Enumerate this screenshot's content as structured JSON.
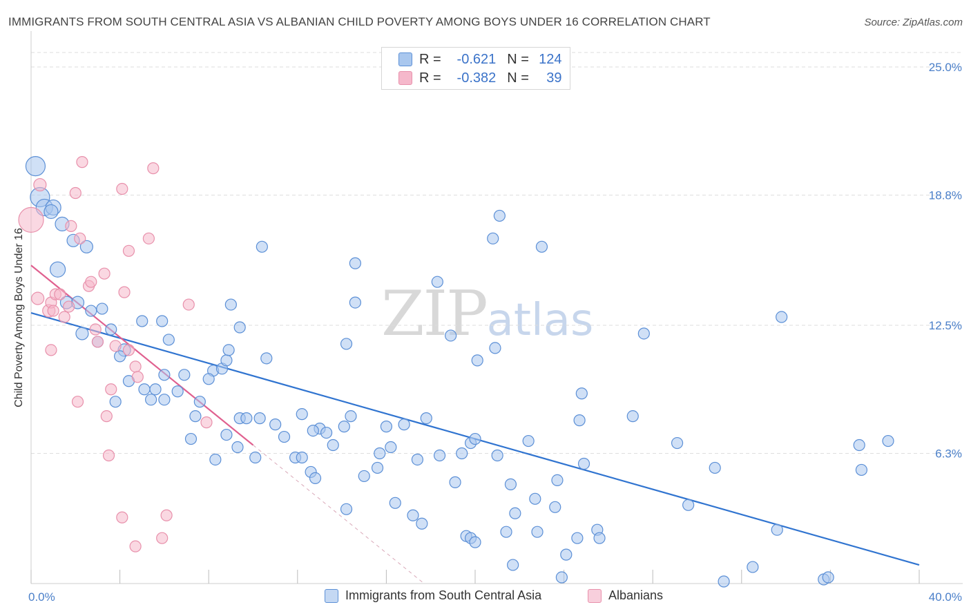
{
  "header": {
    "title": "IMMIGRANTS FROM SOUTH CENTRAL ASIA VS ALBANIAN CHILD POVERTY AMONG BOYS UNDER 16 CORRELATION CHART",
    "source": "Source: ZipAtlas.com"
  },
  "watermark": {
    "zip": "ZIP",
    "atlas": "atlas"
  },
  "legend": {
    "rows": [
      {
        "r_label": "R =",
        "r_value": "-0.621",
        "n_label": "N =",
        "n_value": "124"
      },
      {
        "r_label": "R =",
        "r_value": "-0.382",
        "n_label": "N =",
        "n_value": "39"
      }
    ]
  },
  "bottom_legend": {
    "blue": "Immigrants from South Central Asia",
    "pink": "Albanians"
  },
  "colors": {
    "blue_fill": "#a9c7ee",
    "blue_stroke": "#5b8fd6",
    "blue_line": "#3074d0",
    "pink_fill": "#f5b8cb",
    "pink_stroke": "#e890ab",
    "pink_line": "#e0608f",
    "tick_text": "#4a7fc9",
    "grid": "#dddddd"
  },
  "chart_data": {
    "type": "scatter",
    "title": "IMMIGRANTS FROM SOUTH CENTRAL ASIA VS ALBANIAN CHILD POVERTY AMONG BOYS UNDER 16 CORRELATION CHART",
    "xlabel": "",
    "ylabel": "Child Poverty Among Boys Under 16",
    "xlim": [
      0,
      40
    ],
    "ylim": [
      0,
      25
    ],
    "x_tick_labels": [
      "0.0%",
      "40.0%"
    ],
    "y_ticks": [
      {
        "value": 6.3,
        "label": "6.3%"
      },
      {
        "value": 12.5,
        "label": "12.5%"
      },
      {
        "value": 18.8,
        "label": "18.8%"
      },
      {
        "value": 25.0,
        "label": "25.0%"
      }
    ],
    "grid": true,
    "legend_position": "top-center",
    "series": [
      {
        "name": "Immigrants from South Central Asia",
        "color": "#a9c7ee",
        "R": -0.621,
        "N": 124,
        "trend": {
          "x": [
            0,
            40
          ],
          "y": [
            13.1,
            0.9
          ]
        },
        "points": [
          [
            0.2,
            20.2,
            14
          ],
          [
            0.4,
            18.7,
            14
          ],
          [
            0.6,
            18.2,
            12
          ],
          [
            1.0,
            18.2,
            11
          ],
          [
            0.9,
            18.0,
            10
          ],
          [
            1.4,
            17.4,
            10
          ],
          [
            1.9,
            16.6,
            9
          ],
          [
            2.5,
            16.3,
            9
          ],
          [
            1.2,
            15.2,
            11
          ],
          [
            1.6,
            13.6,
            9
          ],
          [
            2.1,
            13.6,
            9
          ],
          [
            2.7,
            13.2,
            8
          ],
          [
            3.2,
            13.3,
            8
          ],
          [
            2.3,
            12.1,
            9
          ],
          [
            3.6,
            12.3,
            8
          ],
          [
            3.0,
            11.7,
            8
          ],
          [
            4.2,
            11.3,
            9
          ],
          [
            4.0,
            11.0,
            8
          ],
          [
            5.0,
            12.7,
            8
          ],
          [
            5.9,
            12.7,
            8
          ],
          [
            6.2,
            11.8,
            8
          ],
          [
            4.4,
            9.8,
            8
          ],
          [
            5.1,
            9.4,
            8
          ],
          [
            5.6,
            9.4,
            8
          ],
          [
            3.8,
            8.8,
            8
          ],
          [
            5.4,
            8.9,
            8
          ],
          [
            6.0,
            8.9,
            8
          ],
          [
            6.6,
            9.3,
            8
          ],
          [
            6.0,
            10.1,
            8
          ],
          [
            6.9,
            10.1,
            8
          ],
          [
            7.6,
            8.8,
            8
          ],
          [
            7.4,
            8.1,
            8
          ],
          [
            8.2,
            10.3,
            8
          ],
          [
            8.0,
            9.9,
            8
          ],
          [
            8.6,
            10.4,
            8
          ],
          [
            8.8,
            10.8,
            8
          ],
          [
            8.9,
            11.3,
            8
          ],
          [
            9.4,
            12.4,
            8
          ],
          [
            9.0,
            13.5,
            8
          ],
          [
            10.6,
            10.9,
            8
          ],
          [
            10.4,
            16.3,
            8
          ],
          [
            7.2,
            7.0,
            8
          ],
          [
            8.3,
            6.0,
            8
          ],
          [
            8.8,
            7.2,
            8
          ],
          [
            9.3,
            6.6,
            8
          ],
          [
            9.4,
            8.0,
            8
          ],
          [
            9.7,
            8.0,
            8
          ],
          [
            10.1,
            6.1,
            8
          ],
          [
            10.3,
            8.0,
            8
          ],
          [
            11.0,
            7.7,
            8
          ],
          [
            11.4,
            7.1,
            8
          ],
          [
            11.9,
            6.1,
            8
          ],
          [
            12.2,
            6.1,
            8
          ],
          [
            12.2,
            8.2,
            8
          ],
          [
            12.6,
            5.4,
            8
          ],
          [
            12.8,
            5.1,
            8
          ],
          [
            13.0,
            7.5,
            8
          ],
          [
            13.3,
            7.3,
            8
          ],
          [
            13.6,
            6.7,
            8
          ],
          [
            14.1,
            7.6,
            8
          ],
          [
            14.4,
            8.1,
            8
          ],
          [
            14.2,
            11.6,
            8
          ],
          [
            14.6,
            13.6,
            8
          ],
          [
            14.6,
            15.5,
            8
          ],
          [
            14.2,
            3.6,
            8
          ],
          [
            15.0,
            5.2,
            8
          ],
          [
            15.6,
            5.6,
            8
          ],
          [
            15.7,
            6.3,
            8
          ],
          [
            16.0,
            7.6,
            8
          ],
          [
            16.2,
            6.6,
            8
          ],
          [
            16.4,
            3.9,
            8
          ],
          [
            16.8,
            7.7,
            8
          ],
          [
            17.4,
            6.0,
            8
          ],
          [
            17.2,
            3.3,
            8
          ],
          [
            17.6,
            2.9,
            8
          ],
          [
            17.8,
            8.0,
            8
          ],
          [
            18.4,
            6.2,
            8
          ],
          [
            18.3,
            14.6,
            8
          ],
          [
            19.1,
            4.9,
            8
          ],
          [
            19.4,
            6.3,
            8
          ],
          [
            19.8,
            6.8,
            8
          ],
          [
            19.6,
            2.3,
            8
          ],
          [
            19.8,
            2.2,
            8
          ],
          [
            20.0,
            2.0,
            8
          ],
          [
            20.1,
            10.8,
            8
          ],
          [
            20.0,
            7.0,
            8
          ],
          [
            20.9,
            11.4,
            8
          ],
          [
            21.0,
            6.2,
            8
          ],
          [
            21.4,
            2.5,
            8
          ],
          [
            21.6,
            4.8,
            8
          ],
          [
            21.7,
            0.9,
            8
          ],
          [
            21.8,
            3.4,
            8
          ],
          [
            20.8,
            16.7,
            8
          ],
          [
            21.1,
            17.8,
            8
          ],
          [
            22.4,
            6.9,
            8
          ],
          [
            23.0,
            16.3,
            8
          ],
          [
            22.8,
            2.5,
            8
          ],
          [
            22.7,
            4.1,
            8
          ],
          [
            23.6,
            3.7,
            8
          ],
          [
            23.7,
            5.0,
            8
          ],
          [
            23.9,
            0.3,
            8
          ],
          [
            24.1,
            1.4,
            8
          ],
          [
            24.6,
            2.2,
            8
          ],
          [
            24.8,
            9.2,
            8
          ],
          [
            24.9,
            5.8,
            8
          ],
          [
            25.5,
            2.6,
            8
          ],
          [
            25.6,
            2.2,
            8
          ],
          [
            27.1,
            8.1,
            8
          ],
          [
            27.6,
            12.1,
            8
          ],
          [
            29.1,
            6.8,
            8
          ],
          [
            29.6,
            3.8,
            8
          ],
          [
            30.8,
            5.6,
            8
          ],
          [
            31.2,
            0.1,
            8
          ],
          [
            32.5,
            0.8,
            8
          ],
          [
            33.6,
            2.6,
            8
          ],
          [
            33.8,
            12.9,
            8
          ],
          [
            35.7,
            0.2,
            8
          ],
          [
            35.9,
            0.3,
            8
          ],
          [
            37.3,
            6.7,
            8
          ],
          [
            37.4,
            5.5,
            8
          ],
          [
            38.6,
            6.9,
            8
          ],
          [
            24.7,
            7.9,
            8
          ],
          [
            18.9,
            12.0,
            8
          ],
          [
            12.7,
            7.4,
            8
          ]
        ]
      },
      {
        "name": "Albanians",
        "color": "#f5b8cb",
        "R": -0.382,
        "N": 39,
        "trend": {
          "x": [
            0,
            10.0
          ],
          "y": [
            15.4,
            6.7
          ]
        },
        "points": [
          [
            0.0,
            17.6,
            18
          ],
          [
            0.4,
            19.3,
            9
          ],
          [
            0.3,
            13.8,
            9
          ],
          [
            0.8,
            13.2,
            9
          ],
          [
            0.9,
            13.6,
            8
          ],
          [
            0.9,
            11.3,
            8
          ],
          [
            1.1,
            14.0,
            8
          ],
          [
            1.0,
            13.2,
            8
          ],
          [
            1.3,
            14.0,
            8
          ],
          [
            1.5,
            12.9,
            8
          ],
          [
            1.7,
            13.4,
            8
          ],
          [
            1.8,
            17.3,
            8
          ],
          [
            2.0,
            18.9,
            8
          ],
          [
            2.2,
            16.7,
            8
          ],
          [
            2.3,
            20.4,
            8
          ],
          [
            2.6,
            14.4,
            8
          ],
          [
            2.7,
            14.6,
            8
          ],
          [
            2.9,
            12.3,
            8
          ],
          [
            3.0,
            11.7,
            8
          ],
          [
            3.3,
            15.0,
            8
          ],
          [
            3.4,
            8.1,
            8
          ],
          [
            3.5,
            6.2,
            8
          ],
          [
            3.6,
            9.4,
            8
          ],
          [
            3.8,
            11.5,
            8
          ],
          [
            4.1,
            19.1,
            8
          ],
          [
            4.2,
            14.1,
            8
          ],
          [
            4.4,
            11.3,
            8
          ],
          [
            4.4,
            16.1,
            8
          ],
          [
            4.7,
            10.5,
            8
          ],
          [
            4.8,
            10.0,
            8
          ],
          [
            5.3,
            16.7,
            8
          ],
          [
            5.5,
            20.1,
            8
          ],
          [
            5.9,
            2.2,
            8
          ],
          [
            6.1,
            3.3,
            8
          ],
          [
            7.1,
            13.5,
            8
          ],
          [
            7.9,
            7.8,
            8
          ],
          [
            2.1,
            8.8,
            8
          ],
          [
            4.1,
            3.2,
            8
          ],
          [
            4.7,
            1.8,
            8
          ]
        ]
      }
    ]
  }
}
